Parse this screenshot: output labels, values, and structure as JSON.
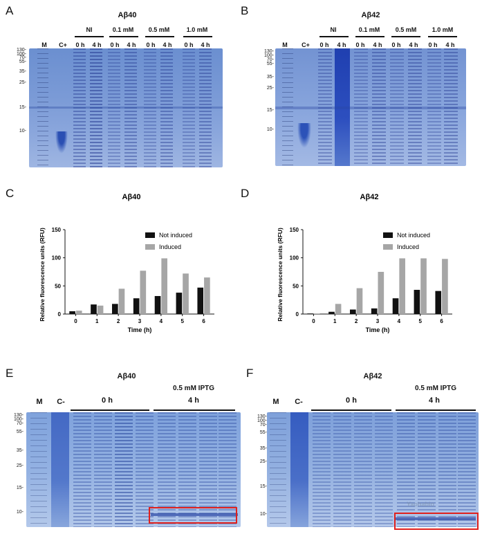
{
  "panels": {
    "A": {
      "letter": "A",
      "title": "Aβ40",
      "lanes": [
        "M",
        "C+"
      ],
      "groups": [
        {
          "name": "NI",
          "times": [
            "0 h",
            "4 h"
          ]
        },
        {
          "name": "0.1 mM",
          "times": [
            "0 h",
            "4 h"
          ]
        },
        {
          "name": "0.5 mM",
          "times": [
            "0 h",
            "4 h"
          ]
        },
        {
          "name": "1.0 mM",
          "times": [
            "0 h",
            "4 h"
          ]
        }
      ],
      "mw": [
        "130-",
        "100-",
        "70-",
        "55-",
        "35-",
        "25-",
        "15-",
        "10-"
      ]
    },
    "B": {
      "letter": "B",
      "title": "Aβ42",
      "lanes": [
        "M",
        "C+"
      ],
      "groups": [
        {
          "name": "NI",
          "times": [
            "0 h",
            "4 h"
          ]
        },
        {
          "name": "0.1 mM",
          "times": [
            "0 h",
            "4 h"
          ]
        },
        {
          "name": "0.5 mM",
          "times": [
            "0 h",
            "4 h"
          ]
        },
        {
          "name": "1.0 mM",
          "times": [
            "0 h",
            "4 h"
          ]
        }
      ],
      "mw": [
        "130-",
        "100-",
        "70-",
        "55-",
        "35-",
        "25-",
        "15-",
        "10-"
      ]
    },
    "C": {
      "letter": "C"
    },
    "D": {
      "letter": "D"
    },
    "E": {
      "letter": "E",
      "title": "Aβ40",
      "iptg": "0.5 mM IPTG",
      "lanes": [
        "M",
        "C-"
      ],
      "t0": "0 h",
      "t4": "4 h",
      "mw": [
        "130-",
        "100-",
        "70-",
        "55-",
        "35-",
        "25-",
        "15-",
        "10-"
      ]
    },
    "F": {
      "letter": "F",
      "title": "Aβ42",
      "iptg": "0.5 mM IPTG",
      "lanes": [
        "M",
        "C-"
      ],
      "t0": "0 h",
      "t4": "4 h",
      "mw": [
        "130-",
        "100-",
        "70-",
        "55-",
        "35-",
        "25-",
        "15-",
        "10-"
      ],
      "watermark": "Yaohabio"
    }
  },
  "chart_data": [
    {
      "type": "bar",
      "title": "Aβ40",
      "xlabel": "Time (h)",
      "ylabel": "Relative fluorescence units (RFU)",
      "categories": [
        "0",
        "1",
        "2",
        "3",
        "4",
        "5",
        "6"
      ],
      "ylim": [
        0,
        150
      ],
      "yticks": [
        "0",
        "50",
        "100",
        "150"
      ],
      "legend_position": "top-right",
      "series": [
        {
          "name": "Not induced",
          "color": "#111111",
          "values": [
            5,
            17,
            18,
            28,
            32,
            38,
            47
          ]
        },
        {
          "name": "Induced",
          "color": "#a6a6a6",
          "values": [
            6,
            15,
            45,
            77,
            99,
            72,
            65
          ]
        }
      ]
    },
    {
      "type": "bar",
      "title": "Aβ42",
      "xlabel": "Time (h)",
      "ylabel": "Relative fluorescence units (RFU)",
      "categories": [
        "0",
        "1",
        "2",
        "3",
        "4",
        "5",
        "6"
      ],
      "ylim": [
        0,
        150
      ],
      "yticks": [
        "0",
        "50",
        "100",
        "150"
      ],
      "legend_position": "top-right",
      "series": [
        {
          "name": "Not induced",
          "color": "#111111",
          "values": [
            1,
            4,
            8,
            10,
            28,
            43,
            41
          ]
        },
        {
          "name": "Induced",
          "color": "#a6a6a6",
          "values": [
            1,
            18,
            46,
            75,
            99,
            99,
            98
          ]
        }
      ]
    }
  ]
}
